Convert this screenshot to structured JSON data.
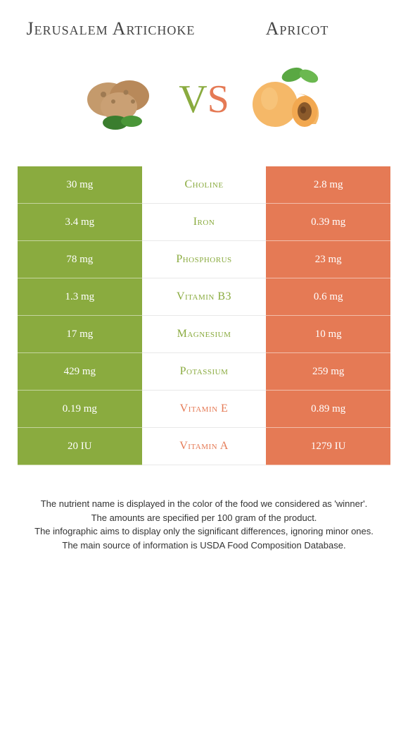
{
  "header": {
    "left_title": "Jerusalem Artichoke",
    "right_title": "Apricot"
  },
  "vs": {
    "v": "V",
    "s": "S"
  },
  "colors": {
    "left": "#8aab3f",
    "right": "#e57a55"
  },
  "rows": [
    {
      "left": "30 mg",
      "nutrient": "Choline",
      "right": "2.8 mg",
      "winner": "left"
    },
    {
      "left": "3.4 mg",
      "nutrient": "Iron",
      "right": "0.39 mg",
      "winner": "left"
    },
    {
      "left": "78 mg",
      "nutrient": "Phosphorus",
      "right": "23 mg",
      "winner": "left"
    },
    {
      "left": "1.3 mg",
      "nutrient": "Vitamin B3",
      "right": "0.6 mg",
      "winner": "left"
    },
    {
      "left": "17 mg",
      "nutrient": "Magnesium",
      "right": "10 mg",
      "winner": "left"
    },
    {
      "left": "429 mg",
      "nutrient": "Potassium",
      "right": "259 mg",
      "winner": "left"
    },
    {
      "left": "0.19 mg",
      "nutrient": "Vitamin E",
      "right": "0.89 mg",
      "winner": "right"
    },
    {
      "left": "20 IU",
      "nutrient": "Vitamin A",
      "right": "1279 IU",
      "winner": "right"
    }
  ],
  "footnotes": {
    "line1": "The nutrient name is displayed in the color of the food we considered as 'winner'.",
    "line2": "The amounts are specified per 100 gram of the product.",
    "line3": "The infographic aims to display only the significant differences, ignoring minor ones.",
    "line4": "The main source of information is USDA Food Composition Database."
  }
}
